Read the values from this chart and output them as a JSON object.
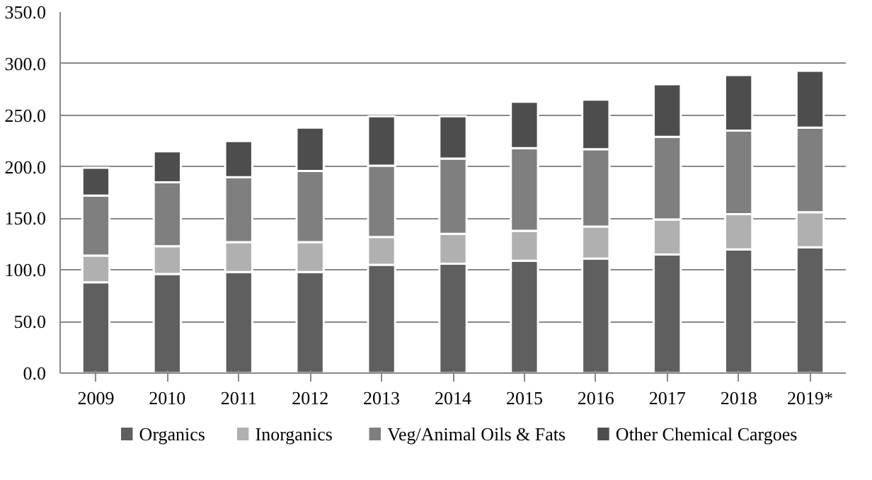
{
  "chart_data": {
    "type": "bar",
    "stacked": true,
    "categories": [
      "2009",
      "2010",
      "2011",
      "2012",
      "2013",
      "2014",
      "2015",
      "2016",
      "2017",
      "2018",
      "2019*"
    ],
    "series": [
      {
        "name": "Organics",
        "color": "#5f5f5f",
        "values": [
          88,
          96,
          98,
          98,
          105,
          106,
          109,
          111,
          115,
          120,
          122
        ]
      },
      {
        "name": "Inorganics",
        "color": "#b0b0b0",
        "values": [
          26,
          27,
          29,
          29,
          27,
          29,
          29,
          31,
          34,
          34,
          34
        ]
      },
      {
        "name": "Veg/Animal Oils & Fats",
        "color": "#7f7f7f",
        "values": [
          58,
          62,
          63,
          69,
          69,
          73,
          80,
          75,
          80,
          81,
          82
        ]
      },
      {
        "name": "Other Chemical Cargoes",
        "color": "#4d4d4d",
        "values": [
          27,
          30,
          35,
          42,
          48,
          41,
          45,
          48,
          51,
          54,
          55
        ]
      }
    ],
    "ylim": [
      0,
      350
    ],
    "yticks": [
      {
        "value": 0,
        "label": "0.0"
      },
      {
        "value": 50,
        "label": "50.0"
      },
      {
        "value": 100,
        "label": "100.0"
      },
      {
        "value": 150,
        "label": "150.0"
      },
      {
        "value": 200,
        "label": "200.0"
      },
      {
        "value": 250,
        "label": "250.0"
      },
      {
        "value": 300,
        "label": "300.0"
      },
      {
        "value": 350,
        "label": "350.0"
      }
    ],
    "grid": "y",
    "legend": "bottom"
  }
}
